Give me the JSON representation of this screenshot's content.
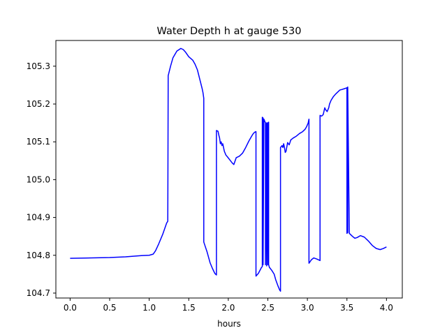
{
  "chart_data": {
    "type": "line",
    "title": "Water Depth h at gauge 530",
    "xlabel": "hours",
    "ylabel": "",
    "xlim": [
      -0.18,
      4.2
    ],
    "ylim": [
      104.687,
      105.368
    ],
    "x_ticks": [
      {
        "value": 0.0,
        "label": "0.0"
      },
      {
        "value": 0.5,
        "label": "0.5"
      },
      {
        "value": 1.0,
        "label": "1.0"
      },
      {
        "value": 1.5,
        "label": "1.5"
      },
      {
        "value": 2.0,
        "label": "2.0"
      },
      {
        "value": 2.5,
        "label": "2.5"
      },
      {
        "value": 3.0,
        "label": "3.0"
      },
      {
        "value": 3.5,
        "label": "3.5"
      },
      {
        "value": 4.0,
        "label": "4.0"
      }
    ],
    "y_ticks": [
      {
        "value": 104.7,
        "label": "104.7"
      },
      {
        "value": 104.8,
        "label": "104.8"
      },
      {
        "value": 104.9,
        "label": "104.9"
      },
      {
        "value": 105.0,
        "label": "105.0"
      },
      {
        "value": 105.1,
        "label": "105.1"
      },
      {
        "value": 105.2,
        "label": "105.2"
      },
      {
        "value": 105.3,
        "label": "105.3"
      }
    ],
    "grid": false,
    "legend": "none",
    "series": [
      {
        "color": "#0000ff",
        "x": [
          0.0,
          0.5,
          0.7,
          0.9,
          1.0,
          1.05,
          1.08,
          1.12,
          1.17,
          1.22,
          1.235,
          1.24,
          1.27,
          1.3,
          1.35,
          1.4,
          1.43,
          1.46,
          1.5,
          1.55,
          1.58,
          1.61,
          1.64,
          1.67,
          1.68,
          1.69,
          1.69,
          1.73,
          1.77,
          1.8,
          1.83,
          1.85,
          1.85,
          1.87,
          1.88,
          1.89,
          1.9,
          1.91,
          1.92,
          1.93,
          1.95,
          1.97,
          1.99,
          2.02,
          2.05,
          2.07,
          2.1,
          2.14,
          2.18,
          2.22,
          2.26,
          2.29,
          2.31,
          2.33,
          2.35,
          2.35,
          2.38,
          2.42,
          2.43,
          2.43,
          2.44,
          2.44,
          2.45,
          2.46,
          2.47,
          2.47,
          2.48,
          2.485,
          2.49,
          2.5,
          2.5,
          2.51,
          2.51,
          2.52,
          2.55,
          2.58,
          2.6,
          2.63,
          2.65,
          2.66,
          2.66,
          2.68,
          2.69,
          2.7,
          2.71,
          2.72,
          2.73,
          2.75,
          2.77,
          2.79,
          2.82,
          2.86,
          2.9,
          2.94,
          2.97,
          2.99,
          3.01,
          3.02,
          3.02,
          3.05,
          3.08,
          3.12,
          3.16,
          3.16,
          3.18,
          3.2,
          3.22,
          3.23,
          3.25,
          3.27,
          3.28,
          3.3,
          3.33,
          3.36,
          3.39,
          3.41,
          3.43,
          3.46,
          3.49,
          3.5,
          3.5,
          3.51,
          3.51,
          3.53,
          3.57,
          3.6,
          3.63,
          3.67,
          3.72,
          3.77,
          3.82,
          3.87,
          3.92,
          3.96,
          4.0
        ],
        "y": [
          104.792,
          104.794,
          104.796,
          104.799,
          104.8,
          104.803,
          104.812,
          104.83,
          104.855,
          104.885,
          104.89,
          105.275,
          105.3,
          105.322,
          105.34,
          105.347,
          105.344,
          105.337,
          105.325,
          105.316,
          105.305,
          105.29,
          105.265,
          105.24,
          105.23,
          105.215,
          104.835,
          104.81,
          104.78,
          104.765,
          104.752,
          104.748,
          105.13,
          105.128,
          105.118,
          105.11,
          105.095,
          105.1,
          105.09,
          105.095,
          105.075,
          105.065,
          105.06,
          105.052,
          105.044,
          105.04,
          105.058,
          105.062,
          105.07,
          105.085,
          105.102,
          105.113,
          105.12,
          105.125,
          105.127,
          104.745,
          104.752,
          104.768,
          104.77,
          105.165,
          105.163,
          104.775,
          105.16,
          105.155,
          105.15,
          104.775,
          105.15,
          104.772,
          105.15,
          104.775,
          105.15,
          105.152,
          104.775,
          104.768,
          104.76,
          104.75,
          104.735,
          104.718,
          104.708,
          104.705,
          105.085,
          105.09,
          105.085,
          105.095,
          105.085,
          105.072,
          105.075,
          105.098,
          105.092,
          105.105,
          105.11,
          105.115,
          105.122,
          105.127,
          105.133,
          105.14,
          105.15,
          105.16,
          104.779,
          104.788,
          104.793,
          104.79,
          104.786,
          105.17,
          105.168,
          105.172,
          105.19,
          105.185,
          105.18,
          105.19,
          105.2,
          105.21,
          105.22,
          105.227,
          105.233,
          105.237,
          105.238,
          105.24,
          105.242,
          105.243,
          104.858,
          104.86,
          105.245,
          104.858,
          104.85,
          104.845,
          104.847,
          104.852,
          104.848,
          104.838,
          104.826,
          104.818,
          104.815,
          104.818,
          104.822
        ]
      }
    ]
  }
}
